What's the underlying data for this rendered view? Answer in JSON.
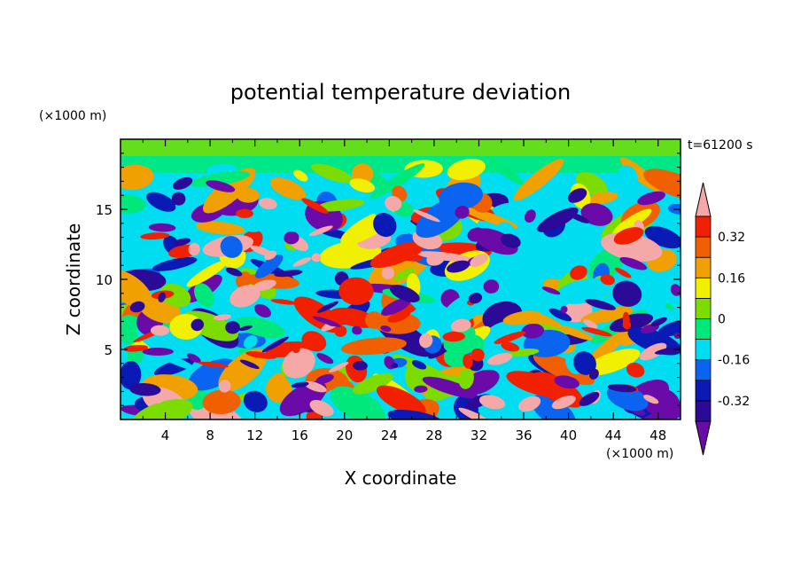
{
  "chart_data": {
    "type": "heatmap",
    "title": "potential temperature deviation",
    "xlabel": "X coordinate",
    "ylabel": "Z coordinate",
    "x_unit_label": "(×1000 m)",
    "y_unit_label": "(×1000 m)",
    "time_label": "t=61200 s",
    "xlim": [
      0,
      50
    ],
    "ylim": [
      0,
      20
    ],
    "x_ticks": [
      4,
      8,
      12,
      16,
      20,
      24,
      28,
      32,
      36,
      40,
      44,
      48
    ],
    "y_ticks": [
      5,
      10,
      15
    ],
    "colorbar": {
      "levels": [
        -0.4,
        -0.32,
        -0.24,
        -0.16,
        -0.08,
        0,
        0.08,
        0.16,
        0.24,
        0.32,
        0.4
      ],
      "tick_labels": [
        "-0.32",
        "-0.16",
        "0",
        "0.16",
        "0.32"
      ],
      "tick_values": [
        -0.32,
        -0.16,
        0,
        0.16,
        0.32
      ],
      "colors": [
        "#6a0aa8",
        "#2a0a96",
        "#0a1ab4",
        "#0a64f0",
        "#00dcf0",
        "#00e87c",
        "#7cdc00",
        "#f0f000",
        "#f0a000",
        "#f06000",
        "#f02000",
        "#f4a8a8"
      ],
      "extend": "both"
    }
  },
  "colors": {
    "background": "#ffffff",
    "field_base": "#00dcf0"
  }
}
